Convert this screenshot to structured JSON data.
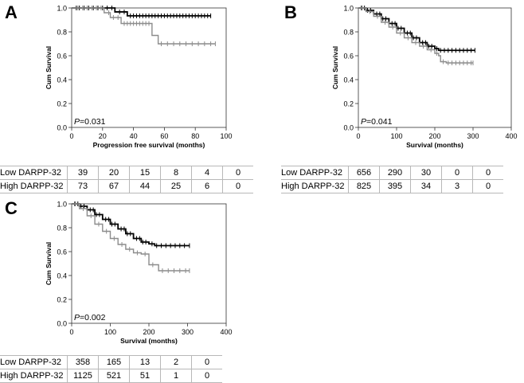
{
  "chart_data": [
    {
      "panel_label": "A",
      "type": "line",
      "chart_kind": "kaplan-meier",
      "xlabel": "Progression free survival (months)",
      "ylabel": "Cum Survival",
      "xlim": [
        0,
        100
      ],
      "ylim": [
        0,
        1.0
      ],
      "xticks": [
        "0",
        "20",
        "40",
        "60",
        "80",
        "100"
      ],
      "yticks": [
        "0.0",
        "0.2",
        "0.4",
        "0.6",
        "0.8",
        "1.0"
      ],
      "annotation_p": "P",
      "annotation_val": "=0.031",
      "series": [
        {
          "name": "Low DARPP-32",
          "color": "#000000",
          "steps": [
            [
              0,
              1.0
            ],
            [
              28,
              1.0
            ],
            [
              28,
              0.967
            ],
            [
              36,
              0.967
            ],
            [
              36,
              0.934
            ],
            [
              90,
              0.934
            ]
          ],
          "censors": [
            3,
            5,
            8,
            11,
            14,
            17,
            20,
            23,
            26,
            31,
            34,
            38,
            40,
            42,
            44,
            46,
            48,
            50,
            52,
            54,
            56,
            58,
            60,
            62,
            64,
            66,
            68,
            70,
            72,
            74,
            76,
            78,
            80,
            82,
            84,
            86,
            88,
            90
          ]
        },
        {
          "name": "High DARPP-32",
          "color": "#8c8c8c",
          "steps": [
            [
              0,
              1.0
            ],
            [
              21,
              1.0
            ],
            [
              21,
              0.96
            ],
            [
              25,
              0.96
            ],
            [
              25,
              0.92
            ],
            [
              32,
              0.92
            ],
            [
              32,
              0.87
            ],
            [
              52,
              0.87
            ],
            [
              52,
              0.77
            ],
            [
              56,
              0.77
            ],
            [
              56,
              0.7
            ],
            [
              93,
              0.7
            ]
          ],
          "censors": [
            4,
            7,
            10,
            13,
            16,
            19,
            24,
            27,
            30,
            34,
            36,
            38,
            40,
            42,
            44,
            46,
            48,
            50,
            58,
            62,
            66,
            70,
            74,
            78,
            82,
            86,
            90,
            93
          ]
        }
      ],
      "risk_table": {
        "rows": [
          {
            "label": "Low DARPP-32",
            "values": [
              "39",
              "20",
              "15",
              "8",
              "4",
              "0"
            ]
          },
          {
            "label": "High DARPP-32",
            "values": [
              "73",
              "67",
              "44",
              "25",
              "6",
              "0"
            ]
          }
        ]
      }
    },
    {
      "panel_label": "B",
      "type": "line",
      "chart_kind": "kaplan-meier",
      "xlabel": "Survival (months)",
      "ylabel": "Cum Survival",
      "xlim": [
        0,
        400
      ],
      "ylim": [
        0,
        1.0
      ],
      "xticks": [
        "0",
        "100",
        "200",
        "300",
        "400"
      ],
      "yticks": [
        "0.0",
        "0.2",
        "0.4",
        "0.6",
        "0.8",
        "1.0"
      ],
      "annotation_p": "P",
      "annotation_val": "=0.041",
      "series": [
        {
          "name": "Low DARPP-32",
          "color": "#000000",
          "steps": [
            [
              0,
              1.0
            ],
            [
              20,
              0.98
            ],
            [
              40,
              0.95
            ],
            [
              60,
              0.91
            ],
            [
              80,
              0.87
            ],
            [
              100,
              0.83
            ],
            [
              120,
              0.79
            ],
            [
              140,
              0.75
            ],
            [
              160,
              0.71
            ],
            [
              180,
              0.68
            ],
            [
              200,
              0.66
            ],
            [
              210,
              0.645
            ],
            [
              305,
              0.645
            ]
          ],
          "censors": [
            8,
            16,
            24,
            32,
            48,
            56,
            64,
            72,
            88,
            96,
            104,
            112,
            128,
            136,
            144,
            152,
            168,
            176,
            184,
            192,
            205,
            215,
            225,
            235,
            245,
            255,
            265,
            275,
            285,
            295,
            305
          ]
        },
        {
          "name": "High DARPP-32",
          "color": "#8c8c8c",
          "steps": [
            [
              0,
              1.0
            ],
            [
              20,
              0.97
            ],
            [
              40,
              0.93
            ],
            [
              60,
              0.88
            ],
            [
              80,
              0.84
            ],
            [
              100,
              0.79
            ],
            [
              120,
              0.75
            ],
            [
              140,
              0.71
            ],
            [
              160,
              0.68
            ],
            [
              180,
              0.65
            ],
            [
              200,
              0.62
            ],
            [
              210,
              0.6
            ],
            [
              215,
              0.55
            ],
            [
              230,
              0.54
            ],
            [
              300,
              0.54
            ]
          ],
          "censors": [
            10,
            30,
            50,
            70,
            90,
            110,
            130,
            150,
            170,
            190,
            205,
            222,
            235,
            245,
            255,
            265,
            275,
            285,
            295,
            300
          ]
        }
      ],
      "risk_table": {
        "rows": [
          {
            "label": "Low DARPP-32",
            "values": [
              "656",
              "290",
              "30",
              "0",
              "0"
            ]
          },
          {
            "label": "High DARPP-32",
            "values": [
              "825",
              "395",
              "34",
              "3",
              "0"
            ]
          }
        ]
      }
    },
    {
      "panel_label": "C",
      "type": "line",
      "chart_kind": "kaplan-meier",
      "xlabel": "Survival (months)",
      "ylabel": "Cum Survival",
      "xlim": [
        0,
        400
      ],
      "ylim": [
        0,
        1.0
      ],
      "xticks": [
        "0",
        "100",
        "200",
        "300",
        "400"
      ],
      "yticks": [
        "0.0",
        "0.2",
        "0.4",
        "0.6",
        "0.8",
        "1.0"
      ],
      "annotation_p": "P",
      "annotation_val": "=0.002",
      "series": [
        {
          "name": "Low DARPP-32",
          "color": "#000000",
          "steps": [
            [
              0,
              1.0
            ],
            [
              20,
              0.98
            ],
            [
              40,
              0.95
            ],
            [
              60,
              0.91
            ],
            [
              80,
              0.87
            ],
            [
              100,
              0.83
            ],
            [
              120,
              0.79
            ],
            [
              140,
              0.75
            ],
            [
              160,
              0.71
            ],
            [
              180,
              0.68
            ],
            [
              200,
              0.665
            ],
            [
              215,
              0.65
            ],
            [
              305,
              0.65
            ]
          ],
          "censors": [
            8,
            16,
            24,
            32,
            48,
            56,
            64,
            72,
            88,
            96,
            104,
            112,
            128,
            136,
            144,
            152,
            168,
            176,
            184,
            192,
            208,
            220,
            232,
            244,
            256,
            268,
            280,
            292,
            305
          ]
        },
        {
          "name": "High DARPP-32",
          "color": "#8c8c8c",
          "steps": [
            [
              0,
              1.0
            ],
            [
              20,
              0.96
            ],
            [
              40,
              0.9
            ],
            [
              60,
              0.83
            ],
            [
              80,
              0.77
            ],
            [
              100,
              0.71
            ],
            [
              120,
              0.66
            ],
            [
              140,
              0.62
            ],
            [
              160,
              0.59
            ],
            [
              180,
              0.58
            ],
            [
              200,
              0.57
            ],
            [
              200,
              0.49
            ],
            [
              225,
              0.49
            ],
            [
              225,
              0.44
            ],
            [
              305,
              0.44
            ]
          ],
          "censors": [
            10,
            30,
            50,
            70,
            90,
            110,
            130,
            150,
            170,
            190,
            210,
            235,
            250,
            265,
            280,
            295,
            305
          ]
        }
      ],
      "risk_table": {
        "rows": [
          {
            "label": "Low DARPP-32",
            "values": [
              "358",
              "165",
              "13",
              "2",
              "0"
            ]
          },
          {
            "label": "High DARPP-32",
            "values": [
              "1125",
              "521",
              "51",
              "1",
              "0"
            ]
          }
        ]
      }
    }
  ]
}
